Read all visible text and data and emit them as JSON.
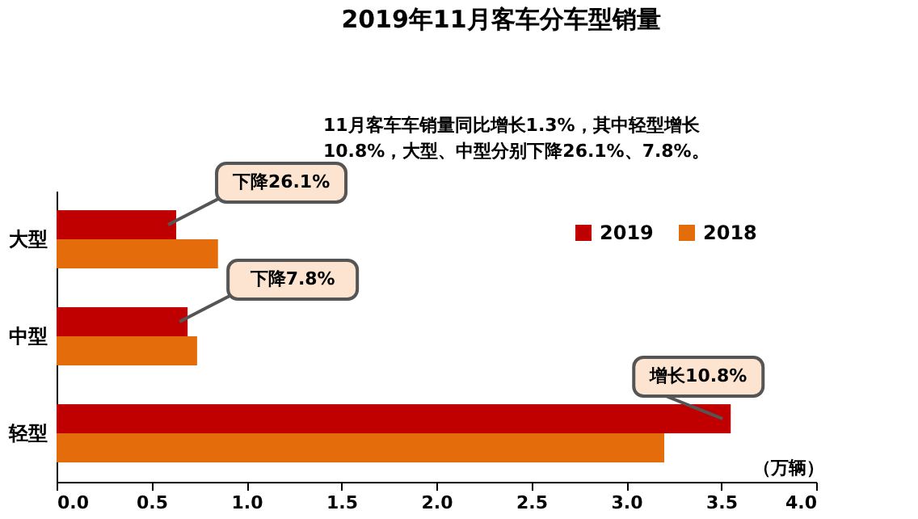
{
  "chart_data": {
    "type": "bar",
    "orientation": "horizontal",
    "title": "2019年11月客车分车型销量",
    "subtitle": [
      "11月客车车销量同比增长1.3%，其中轻型增长",
      "10.8%，大型、中型分别下降26.1%、7.8%。"
    ],
    "xlabel": "（万辆）",
    "categories": [
      "大型",
      "中型",
      "轻型"
    ],
    "series": [
      {
        "name": "2019",
        "color": "#c00000",
        "values": [
          0.63,
          0.69,
          3.55
        ]
      },
      {
        "name": "2018",
        "color": "#e46c0a",
        "values": [
          0.85,
          0.74,
          3.2
        ]
      }
    ],
    "xlim": [
      0,
      4
    ],
    "xticks": [
      {
        "value": 0,
        "label": "0.0"
      },
      {
        "value": 0.5,
        "label": "0.5"
      },
      {
        "value": 1,
        "label": "1.0"
      },
      {
        "value": 1.5,
        "label": "1.5"
      },
      {
        "value": 2,
        "label": "2.0"
      },
      {
        "value": 2.5,
        "label": "2.5"
      },
      {
        "value": 3,
        "label": "3.0"
      },
      {
        "value": 3.5,
        "label": "3.5"
      },
      {
        "value": 4,
        "label": "4.0"
      }
    ],
    "annotations": [
      "下降26.1%",
      "下降7.8%",
      "增长10.8%"
    ],
    "legend": "top right",
    "grid": false
  }
}
